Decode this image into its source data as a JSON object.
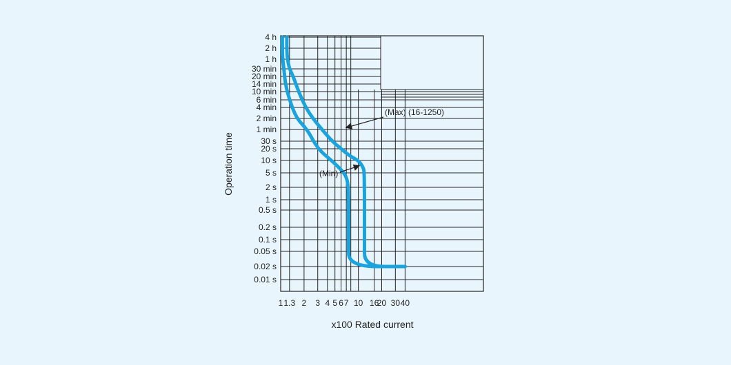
{
  "chart_data": {
    "type": "line",
    "xlabel": "x100 Rated current",
    "ylabel": "Operation time",
    "x_scale": "log",
    "y_scale": "log",
    "xlim": [
      1,
      60
    ],
    "x_ticks": [
      {
        "value": 1,
        "label": "1"
      },
      {
        "value": 1.3,
        "label": "1.3"
      },
      {
        "value": 2,
        "label": "2"
      },
      {
        "value": 3,
        "label": "3"
      },
      {
        "value": 4,
        "label": "4"
      },
      {
        "value": 5,
        "label": "5"
      },
      {
        "value": 6,
        "label": "6"
      },
      {
        "value": 7,
        "label": "7"
      },
      {
        "value": 10,
        "label": "10"
      },
      {
        "value": 16,
        "label": "16"
      },
      {
        "value": 20,
        "label": "20"
      },
      {
        "value": 30,
        "label": "30"
      },
      {
        "value": 40,
        "label": "40"
      }
    ],
    "y_ticks": [
      {
        "label": "4 h"
      },
      {
        "label": "2 h"
      },
      {
        "label": "1 h"
      },
      {
        "label": "30 min"
      },
      {
        "label": "20 min"
      },
      {
        "label": "14 min"
      },
      {
        "label": "10 min"
      },
      {
        "label": "6 min"
      },
      {
        "label": "4 min"
      },
      {
        "label": "2 min"
      },
      {
        "label": "1 min"
      },
      {
        "label": "30 s"
      },
      {
        "label": "20 s"
      },
      {
        "label": "10 s"
      },
      {
        "label": "5 s"
      },
      {
        "label": "2 s"
      },
      {
        "label": "1 s"
      },
      {
        "label": "0.5 s"
      },
      {
        "label": "0.2 s"
      },
      {
        "label": "0.1 s"
      },
      {
        "label": "0.05 s"
      },
      {
        "label": "0.02 s"
      },
      {
        "label": "0.01 s"
      }
    ],
    "grid": true,
    "line_color": "#1aa3dc",
    "series": [
      {
        "name": "(Max) (16-1250)",
        "points": [
          [
            "1.2",
            "4 h"
          ],
          [
            "1.2",
            "2 h"
          ],
          [
            "1.22",
            "1 h"
          ],
          [
            "1.3",
            "30 min"
          ],
          [
            "1.45",
            "20 min"
          ],
          [
            "1.7",
            "10 min"
          ],
          [
            "2.1",
            "4 min"
          ],
          [
            "2.6",
            "2 min"
          ],
          [
            "3.4",
            "1 min"
          ],
          [
            "4.6",
            "30 s"
          ],
          [
            "6",
            "20 s"
          ],
          [
            "7.8",
            "13 s"
          ],
          [
            "10",
            "10 s"
          ],
          [
            "11.5",
            "7 s"
          ],
          [
            "12",
            "5 s"
          ],
          [
            "12",
            "0.1 s"
          ],
          [
            "12",
            "0.02 s"
          ],
          [
            "40",
            "0.02 s"
          ]
        ]
      },
      {
        "name": "(Min)",
        "points": [
          [
            "1.05",
            "4 h"
          ],
          [
            "1.05",
            "2 h"
          ],
          [
            "1.06",
            "1 h"
          ],
          [
            "1.1",
            "30 min"
          ],
          [
            "1.15",
            "14 min"
          ],
          [
            "1.3",
            "6 min"
          ],
          [
            "1.6",
            "2 min"
          ],
          [
            "2.2",
            "1 min"
          ],
          [
            "3",
            "20 s"
          ],
          [
            "4.5",
            "10 s"
          ],
          [
            "6",
            "6 s"
          ],
          [
            "7",
            "4 s"
          ],
          [
            "7.5",
            "2 s"
          ],
          [
            "7.5",
            "0.1 s"
          ],
          [
            "7.5",
            "0.02 s"
          ],
          [
            "40",
            "0.02 s"
          ]
        ]
      }
    ],
    "annotations": [
      {
        "text": "(Max) (16-1250)"
      },
      {
        "text": "(Min)"
      }
    ]
  }
}
